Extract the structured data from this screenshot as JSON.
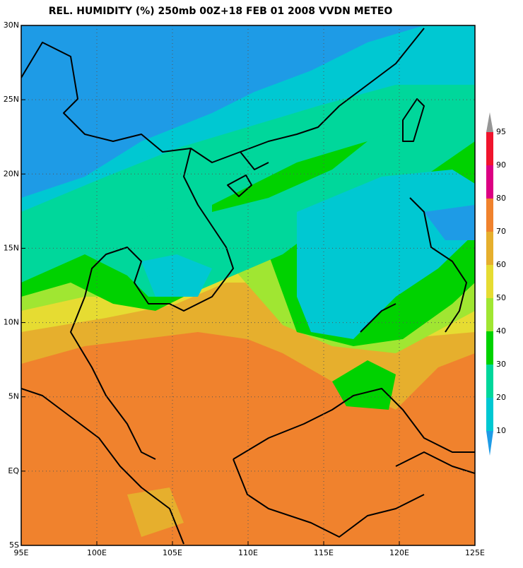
{
  "title": "REL. HUMIDITY (%) 250mb 00Z+18 FEB 01 2008 VVDN METEO",
  "map": {
    "lon_labels": [
      "95E",
      "100E",
      "105E",
      "110E",
      "115E",
      "120E",
      "125E"
    ],
    "lat_labels": [
      "30N",
      "25N",
      "20N",
      "15N",
      "10N",
      "5N",
      "EQ",
      "5S"
    ]
  },
  "colorbar": {
    "levels": [
      10,
      20,
      30,
      40,
      50,
      60,
      70,
      80,
      90,
      95
    ],
    "colors": [
      "#1e9be6",
      "#00c8d2",
      "#00d79b",
      "#00d200",
      "#a0e632",
      "#e6dc32",
      "#e6af2d",
      "#f0822d",
      "#dc0082",
      "#f0142d",
      "#969696"
    ]
  }
}
